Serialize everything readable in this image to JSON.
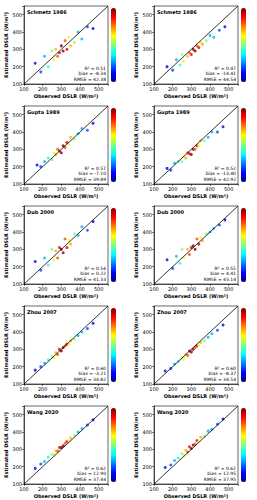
{
  "chart_data": [
    {
      "type": "scatter",
      "title": "Schmetz 1986",
      "x_label": "Observed DSLR (W/m²)",
      "y_label": "Estimated DSLR (W/m²)",
      "xlim": [
        100,
        550
      ],
      "ylim": [
        100,
        550
      ],
      "xticks": [
        100,
        200,
        300,
        400,
        500
      ],
      "yticks": [
        100,
        200,
        300,
        400,
        500
      ],
      "annotations": [
        "R² = 0.51",
        "bias = -8.34",
        "RMSE = 42.38"
      ],
      "density_range": [
        0,
        1
      ],
      "series": [
        {
          "type": "scatter",
          "x": [
            160,
            190,
            210,
            230,
            250,
            260,
            270,
            280,
            290,
            300,
            310,
            320,
            330,
            340,
            350,
            370,
            390,
            410,
            440,
            470
          ],
          "values": [
            220,
            170,
            260,
            200,
            290,
            240,
            300,
            260,
            280,
            320,
            290,
            350,
            300,
            370,
            320,
            340,
            400,
            360,
            430,
            420
          ],
          "density": [
            0.1,
            0.2,
            0.3,
            0.4,
            0.5,
            0.6,
            0.7,
            0.8,
            0.9,
            1.0,
            1.0,
            0.8,
            0.9,
            0.6,
            0.7,
            0.5,
            0.3,
            0.3,
            0.2,
            0.1
          ]
        },
        {
          "type": "line",
          "color": "#000000",
          "x": [
            100,
            550
          ],
          "values": [
            100,
            550
          ]
        }
      ]
    },
    {
      "type": "scatter",
      "title": "Schmetz 1986",
      "x_label": "Observed DSLR (W/m²)",
      "y_label": "Estimated DSLR (W/m²)",
      "xlim": [
        100,
        550
      ],
      "ylim": [
        100,
        550
      ],
      "xticks": [
        100,
        200,
        300,
        400,
        500
      ],
      "yticks": [
        100,
        200,
        300,
        400,
        500
      ],
      "annotations": [
        "R² = 0.47",
        "bias = -14.41",
        "RMSE = 44.54"
      ],
      "density_range": [
        0,
        1
      ],
      "series": [
        {
          "type": "scatter",
          "x": [
            170,
            200,
            220,
            240,
            250,
            260,
            280,
            290,
            300,
            310,
            320,
            330,
            340,
            350,
            360,
            380,
            400,
            420,
            450,
            480
          ],
          "values": [
            200,
            180,
            240,
            210,
            270,
            230,
            260,
            280,
            270,
            300,
            290,
            320,
            310,
            340,
            330,
            350,
            380,
            370,
            410,
            430
          ],
          "density": [
            0.1,
            0.2,
            0.3,
            0.4,
            0.5,
            0.6,
            0.7,
            0.8,
            0.9,
            1.0,
            1.0,
            0.8,
            0.9,
            0.6,
            0.7,
            0.5,
            0.3,
            0.3,
            0.2,
            0.1
          ]
        },
        {
          "type": "line",
          "color": "#000000",
          "x": [
            100,
            550
          ],
          "values": [
            100,
            550
          ]
        }
      ]
    },
    {
      "type": "scatter",
      "title": "Gupta 1989",
      "x_label": "Observed DSLR (W/m²)",
      "y_label": "Estimated DSLR (W/m²)",
      "xlim": [
        100,
        550
      ],
      "ylim": [
        100,
        550
      ],
      "xticks": [
        100,
        200,
        300,
        400,
        500
      ],
      "yticks": [
        100,
        200,
        300,
        400,
        500
      ],
      "annotations": [
        "R² = 0.57",
        "bias = -7.10",
        "RMSE = 39.89"
      ],
      "density_range": [
        0,
        1
      ],
      "series": [
        {
          "type": "scatter",
          "x": [
            170,
            190,
            210,
            230,
            250,
            260,
            270,
            280,
            290,
            300,
            310,
            320,
            330,
            340,
            350,
            370,
            390,
            410,
            440,
            470
          ],
          "values": [
            210,
            200,
            230,
            250,
            240,
            280,
            270,
            300,
            290,
            280,
            320,
            310,
            340,
            330,
            370,
            360,
            390,
            420,
            410,
            450
          ],
          "density": [
            0.1,
            0.2,
            0.3,
            0.4,
            0.5,
            0.6,
            0.7,
            0.8,
            0.9,
            1.0,
            1.0,
            0.8,
            0.9,
            0.6,
            0.7,
            0.5,
            0.3,
            0.3,
            0.2,
            0.1
          ]
        },
        {
          "type": "line",
          "color": "#000000",
          "x": [
            100,
            550
          ],
          "values": [
            100,
            550
          ]
        }
      ]
    },
    {
      "type": "scatter",
      "title": "Gupta 1989",
      "x_label": "Observed DSLR (W/m²)",
      "y_label": "Estimated DSLR (W/m²)",
      "xlim": [
        100,
        550
      ],
      "ylim": [
        100,
        550
      ],
      "xticks": [
        100,
        200,
        300,
        400,
        500
      ],
      "yticks": [
        100,
        200,
        300,
        400,
        500
      ],
      "annotations": [
        "R² = 0.52",
        "bias = -13.40",
        "RMSE = 42.92"
      ],
      "density_range": [
        0,
        1
      ],
      "series": [
        {
          "type": "scatter",
          "x": [
            170,
            190,
            210,
            230,
            250,
            260,
            270,
            280,
            290,
            300,
            310,
            320,
            330,
            340,
            350,
            370,
            390,
            410,
            440,
            470
          ],
          "values": [
            190,
            180,
            220,
            230,
            230,
            260,
            250,
            280,
            275,
            270,
            300,
            300,
            320,
            320,
            350,
            350,
            370,
            400,
            400,
            430
          ],
          "density": [
            0.1,
            0.2,
            0.3,
            0.4,
            0.5,
            0.6,
            0.7,
            0.8,
            0.9,
            1.0,
            1.0,
            0.8,
            0.9,
            0.6,
            0.7,
            0.5,
            0.3,
            0.3,
            0.2,
            0.1
          ]
        },
        {
          "type": "line",
          "color": "#000000",
          "x": [
            100,
            550
          ],
          "values": [
            100,
            550
          ]
        }
      ]
    },
    {
      "type": "scatter",
      "title": "Dub 2000",
      "x_label": "Observed DSLR (W/m²)",
      "y_label": "Estimated DSLR (W/m²)",
      "xlim": [
        100,
        550
      ],
      "ylim": [
        100,
        550
      ],
      "xticks": [
        100,
        200,
        300,
        400,
        500
      ],
      "yticks": [
        100,
        200,
        300,
        400,
        500
      ],
      "annotations": [
        "R² = 0.54",
        "bias = 0.22",
        "RMSE = 41.33"
      ],
      "density_range": [
        0,
        1
      ],
      "series": [
        {
          "type": "scatter",
          "x": [
            160,
            190,
            210,
            230,
            250,
            260,
            270,
            280,
            290,
            300,
            310,
            320,
            330,
            340,
            350,
            370,
            390,
            410,
            440,
            470
          ],
          "values": [
            230,
            180,
            250,
            210,
            300,
            240,
            290,
            250,
            310,
            300,
            280,
            360,
            310,
            350,
            330,
            390,
            380,
            430,
            410,
            460
          ],
          "density": [
            0.1,
            0.2,
            0.3,
            0.4,
            0.5,
            0.6,
            0.7,
            0.8,
            0.9,
            1.0,
            1.0,
            0.8,
            0.9,
            0.6,
            0.7,
            0.5,
            0.3,
            0.3,
            0.2,
            0.1
          ]
        },
        {
          "type": "line",
          "color": "#000000",
          "x": [
            100,
            550
          ],
          "values": [
            100,
            550
          ]
        }
      ]
    },
    {
      "type": "scatter",
      "title": "Dub 2000",
      "x_label": "Observed DSLR (W/m²)",
      "y_label": "Estimated DSLR (W/m²)",
      "xlim": [
        100,
        550
      ],
      "ylim": [
        100,
        550
      ],
      "xticks": [
        100,
        200,
        300,
        400,
        500
      ],
      "yticks": [
        100,
        200,
        300,
        400,
        500
      ],
      "annotations": [
        "R² = 0.55",
        "bias = 4.41",
        "RMSE = 43.14"
      ],
      "density_range": [
        0,
        1
      ],
      "series": [
        {
          "type": "scatter",
          "x": [
            170,
            200,
            220,
            240,
            250,
            260,
            280,
            290,
            300,
            310,
            320,
            330,
            340,
            350,
            360,
            380,
            400,
            420,
            450,
            480
          ],
          "values": [
            240,
            190,
            260,
            220,
            300,
            250,
            300,
            270,
            310,
            320,
            300,
            360,
            330,
            370,
            350,
            390,
            400,
            420,
            440,
            470
          ],
          "density": [
            0.1,
            0.2,
            0.3,
            0.4,
            0.5,
            0.6,
            0.7,
            0.8,
            0.9,
            1.0,
            1.0,
            0.8,
            0.9,
            0.6,
            0.7,
            0.5,
            0.3,
            0.3,
            0.2,
            0.1
          ]
        },
        {
          "type": "line",
          "color": "#000000",
          "x": [
            100,
            550
          ],
          "values": [
            100,
            550
          ]
        }
      ]
    },
    {
      "type": "scatter",
      "title": "Zhou 2007",
      "x_label": "Observed DSLR (W/m²)",
      "y_label": "Estimated DSLR (W/m²)",
      "xlim": [
        100,
        550
      ],
      "ylim": [
        100,
        550
      ],
      "xticks": [
        100,
        200,
        300,
        400,
        500
      ],
      "yticks": [
        100,
        200,
        300,
        400,
        500
      ],
      "annotations": [
        "R² = 0.60",
        "bias = -3.21",
        "RMSE = 34.82"
      ],
      "density_range": [
        0,
        1
      ],
      "series": [
        {
          "type": "scatter",
          "x": [
            160,
            190,
            210,
            230,
            250,
            260,
            270,
            280,
            290,
            300,
            310,
            320,
            330,
            340,
            350,
            370,
            390,
            410,
            440,
            470
          ],
          "values": [
            180,
            200,
            220,
            240,
            260,
            250,
            280,
            270,
            300,
            290,
            310,
            320,
            330,
            330,
            350,
            360,
            380,
            400,
            420,
            450
          ],
          "density": [
            0.1,
            0.2,
            0.3,
            0.4,
            0.5,
            0.6,
            0.7,
            0.8,
            0.9,
            1.0,
            1.0,
            0.8,
            0.9,
            0.6,
            0.7,
            0.5,
            0.3,
            0.3,
            0.2,
            0.1
          ]
        },
        {
          "type": "line",
          "color": "#000000",
          "x": [
            100,
            550
          ],
          "values": [
            100,
            550
          ]
        }
      ]
    },
    {
      "type": "scatter",
      "title": "Zhou 2007",
      "x_label": "Observed DSLR (W/m²)",
      "y_label": "Estimated DSLR (W/m²)",
      "xlim": [
        100,
        550
      ],
      "ylim": [
        100,
        550
      ],
      "xticks": [
        100,
        200,
        300,
        400,
        500
      ],
      "yticks": [
        100,
        200,
        300,
        400,
        500
      ],
      "annotations": [
        "R² = 0.60",
        "bias = -8.37",
        "RMSE = 34.54"
      ],
      "density_range": [
        0,
        1
      ],
      "series": [
        {
          "type": "scatter",
          "x": [
            160,
            190,
            210,
            230,
            250,
            260,
            270,
            280,
            290,
            300,
            310,
            320,
            330,
            340,
            350,
            370,
            390,
            410,
            440,
            470
          ],
          "values": [
            175,
            190,
            215,
            230,
            250,
            245,
            270,
            265,
            290,
            285,
            300,
            310,
            320,
            325,
            340,
            350,
            370,
            390,
            410,
            440
          ],
          "density": [
            0.1,
            0.2,
            0.3,
            0.4,
            0.5,
            0.6,
            0.7,
            0.8,
            0.9,
            1.0,
            1.0,
            0.8,
            0.9,
            0.6,
            0.7,
            0.5,
            0.3,
            0.3,
            0.2,
            0.1
          ]
        },
        {
          "type": "line",
          "color": "#000000",
          "x": [
            100,
            550
          ],
          "values": [
            100,
            550
          ]
        }
      ]
    },
    {
      "type": "scatter",
      "title": "Wang 2020",
      "x_label": "Observed DSLR (W/m²)",
      "y_label": "Estimated DSLR (W/m²)",
      "xlim": [
        100,
        550
      ],
      "ylim": [
        100,
        550
      ],
      "xticks": [
        100,
        200,
        300,
        400,
        500
      ],
      "yticks": [
        100,
        200,
        300,
        400,
        500
      ],
      "annotations": [
        "R² = 0.62",
        "bias = 12.90",
        "RMSE = 37.44"
      ],
      "density_range": [
        0,
        1
      ],
      "series": [
        {
          "type": "scatter",
          "x": [
            160,
            190,
            210,
            230,
            250,
            260,
            270,
            280,
            290,
            300,
            310,
            320,
            330,
            340,
            350,
            370,
            390,
            410,
            440,
            470
          ],
          "values": [
            190,
            215,
            230,
            255,
            270,
            270,
            290,
            290,
            310,
            310,
            320,
            335,
            345,
            350,
            365,
            380,
            400,
            420,
            440,
            470
          ],
          "density": [
            0.1,
            0.2,
            0.3,
            0.4,
            0.5,
            0.6,
            0.7,
            0.8,
            0.9,
            1.0,
            1.0,
            0.8,
            0.9,
            0.6,
            0.7,
            0.5,
            0.3,
            0.3,
            0.2,
            0.1
          ]
        },
        {
          "type": "line",
          "color": "#000000",
          "x": [
            100,
            550
          ],
          "values": [
            100,
            550
          ]
        }
      ]
    },
    {
      "type": "scatter",
      "title": "Wang 2020",
      "x_label": "Observed DSLR (W/m²)",
      "y_label": "Estimated DSLR (W/m²)",
      "xlim": [
        100,
        550
      ],
      "ylim": [
        100,
        550
      ],
      "xticks": [
        100,
        200,
        300,
        400,
        500
      ],
      "yticks": [
        100,
        200,
        300,
        400,
        500
      ],
      "annotations": [
        "R² = 0.62",
        "bias = 12.95",
        "RMSE = 37.95"
      ],
      "density_range": [
        0,
        1
      ],
      "series": [
        {
          "type": "scatter",
          "x": [
            160,
            190,
            210,
            230,
            250,
            260,
            270,
            280,
            290,
            300,
            310,
            320,
            330,
            340,
            350,
            370,
            390,
            410,
            440,
            470
          ],
          "values": [
            195,
            210,
            235,
            250,
            275,
            265,
            295,
            285,
            315,
            305,
            325,
            330,
            350,
            345,
            370,
            375,
            405,
            415,
            445,
            475
          ],
          "density": [
            0.1,
            0.2,
            0.3,
            0.4,
            0.5,
            0.6,
            0.7,
            0.8,
            0.9,
            1.0,
            1.0,
            0.8,
            0.9,
            0.6,
            0.7,
            0.5,
            0.3,
            0.3,
            0.2,
            0.1
          ]
        },
        {
          "type": "line",
          "color": "#000000",
          "x": [
            100,
            550
          ],
          "values": [
            100,
            550
          ]
        }
      ]
    }
  ]
}
